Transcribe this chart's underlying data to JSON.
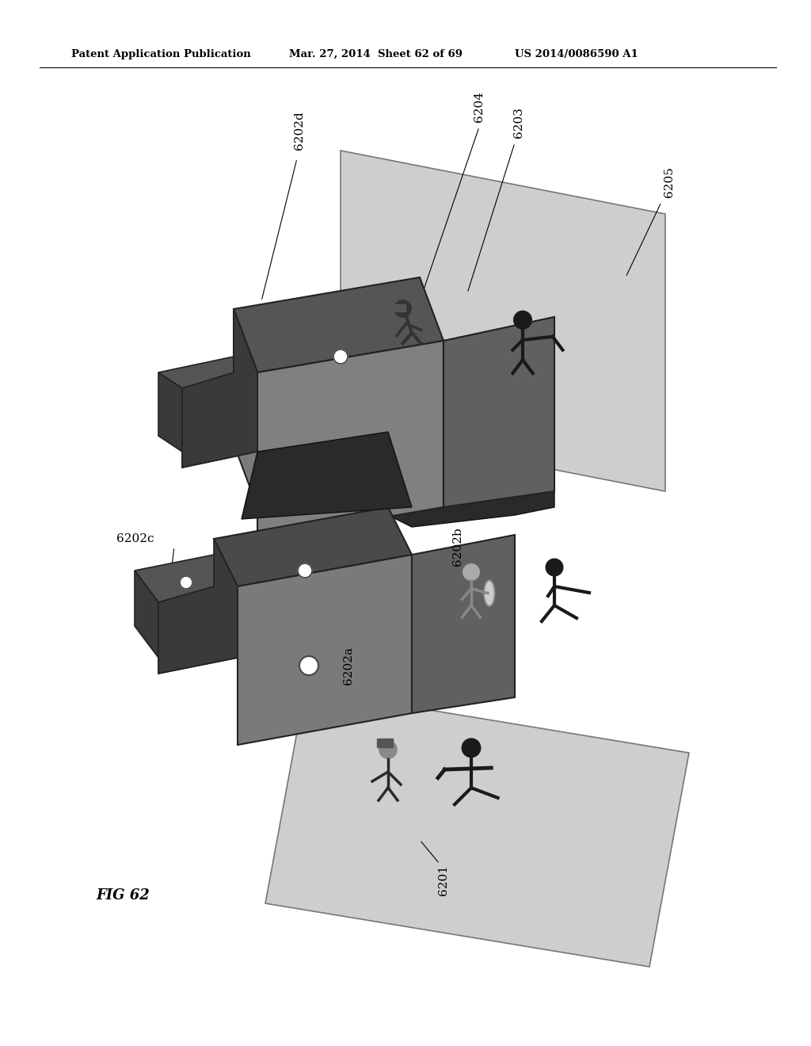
{
  "header_left": "Patent Application Publication",
  "header_mid": "Mar. 27, 2014  Sheet 62 of 69",
  "header_right": "US 2014/0086590 A1",
  "fig_label": "FIG 62",
  "background_color": "#ffffff",
  "platform_color": "#c8c8c8",
  "platform_edge": "#888888",
  "platform2_color": "#d0d0d0",
  "kiosk_top_color": "#555555",
  "kiosk_front_color": "#888888",
  "kiosk_side_color": "#444444",
  "kiosk_dark": "#333333"
}
